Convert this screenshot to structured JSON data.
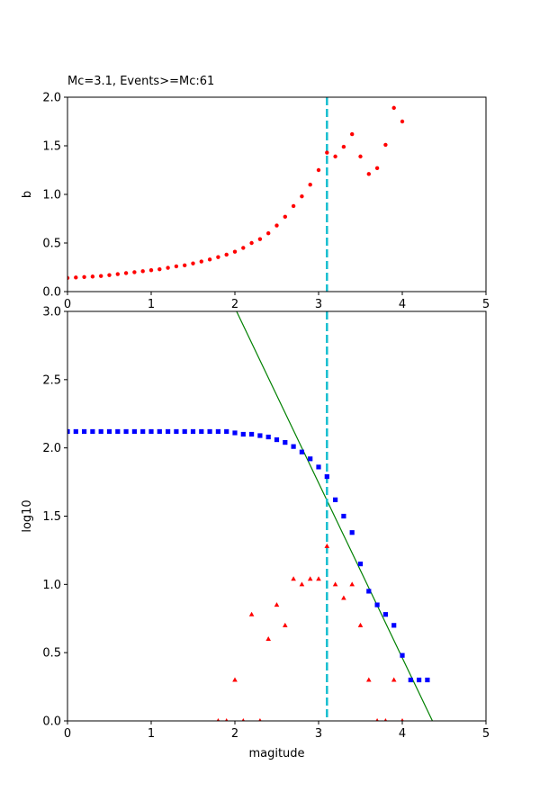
{
  "chart_data": [
    {
      "type": "scatter",
      "title": "Mc=3.1, Events>=Mc:61",
      "xlabel": "",
      "ylabel": "b",
      "xlim": [
        0,
        5
      ],
      "ylim": [
        0,
        2.0
      ],
      "xticks": [
        "0",
        "1",
        "2",
        "3",
        "4",
        "5"
      ],
      "yticks": [
        "0.0",
        "0.5",
        "1.0",
        "1.5",
        "2.0"
      ],
      "grid": false,
      "vline": {
        "x": 3.1,
        "color": "#17becf",
        "style": "dashed"
      },
      "series": [
        {
          "marker": "circle",
          "color": "#ff0000",
          "x": [
            0.0,
            0.1,
            0.2,
            0.3,
            0.4,
            0.5,
            0.6,
            0.7,
            0.8,
            0.9,
            1.0,
            1.1,
            1.2,
            1.3,
            1.4,
            1.5,
            1.6,
            1.7,
            1.8,
            1.9,
            2.0,
            2.1,
            2.2,
            2.3,
            2.4,
            2.5,
            2.6,
            2.7,
            2.8,
            2.9,
            3.0,
            3.1,
            3.2,
            3.3,
            3.4,
            3.5,
            3.6,
            3.7,
            3.8,
            3.9,
            4.0
          ],
          "y": [
            0.14,
            0.145,
            0.15,
            0.155,
            0.16,
            0.17,
            0.18,
            0.19,
            0.2,
            0.21,
            0.22,
            0.23,
            0.245,
            0.26,
            0.27,
            0.29,
            0.31,
            0.33,
            0.355,
            0.38,
            0.41,
            0.45,
            0.5,
            0.54,
            0.6,
            0.68,
            0.77,
            0.88,
            0.98,
            1.1,
            1.25,
            1.43,
            1.39,
            1.49,
            1.62,
            1.39,
            1.21,
            1.27,
            1.51,
            1.89,
            1.75
          ]
        }
      ]
    },
    {
      "type": "scatter",
      "title": "",
      "xlabel": "magitude",
      "ylabel": "log10",
      "xlim": [
        0,
        5
      ],
      "ylim": [
        0,
        3.0
      ],
      "xticks": [
        "0",
        "1",
        "2",
        "3",
        "4",
        "5"
      ],
      "yticks": [
        "0.0",
        "0.5",
        "1.0",
        "1.5",
        "2.0",
        "2.5",
        "3.0"
      ],
      "grid": false,
      "vline": {
        "x": 3.1,
        "color": "#17becf",
        "style": "dashed"
      },
      "fit_line": {
        "color": "#008000",
        "x": [
          2.02,
          4.36
        ],
        "y": [
          3.0,
          0.0
        ]
      },
      "series": [
        {
          "marker": "square",
          "color": "#0000ff",
          "x": [
            0.0,
            0.1,
            0.2,
            0.3,
            0.4,
            0.5,
            0.6,
            0.7,
            0.8,
            0.9,
            1.0,
            1.1,
            1.2,
            1.3,
            1.4,
            1.5,
            1.6,
            1.7,
            1.8,
            1.9,
            2.0,
            2.1,
            2.2,
            2.3,
            2.4,
            2.5,
            2.6,
            2.7,
            2.8,
            2.9,
            3.0,
            3.1,
            3.2,
            3.3,
            3.4,
            3.5,
            3.6,
            3.7,
            3.8,
            3.9,
            4.0,
            4.1,
            4.2,
            4.3
          ],
          "y": [
            2.12,
            2.12,
            2.12,
            2.12,
            2.12,
            2.12,
            2.12,
            2.12,
            2.12,
            2.12,
            2.12,
            2.12,
            2.12,
            2.12,
            2.12,
            2.12,
            2.12,
            2.12,
            2.12,
            2.12,
            2.11,
            2.1,
            2.1,
            2.09,
            2.08,
            2.06,
            2.04,
            2.01,
            1.97,
            1.92,
            1.86,
            1.79,
            1.62,
            1.5,
            1.38,
            1.15,
            0.95,
            0.85,
            0.78,
            0.7,
            0.48,
            0.3,
            0.3,
            0.3
          ]
        },
        {
          "marker": "triangle",
          "color": "#ff0000",
          "x": [
            1.8,
            1.9,
            2.0,
            2.1,
            2.2,
            2.3,
            2.4,
            2.5,
            2.6,
            2.7,
            2.8,
            2.9,
            3.0,
            3.1,
            3.2,
            3.3,
            3.4,
            3.5,
            3.6,
            3.7,
            3.8,
            3.9,
            4.0
          ],
          "y": [
            0.0,
            0.0,
            0.3,
            0.0,
            0.78,
            0.0,
            0.6,
            0.85,
            0.7,
            1.04,
            1.0,
            1.04,
            1.04,
            1.28,
            1.0,
            0.9,
            1.0,
            0.7,
            0.3,
            0.0,
            0.0,
            0.3,
            0.0
          ]
        }
      ]
    }
  ]
}
